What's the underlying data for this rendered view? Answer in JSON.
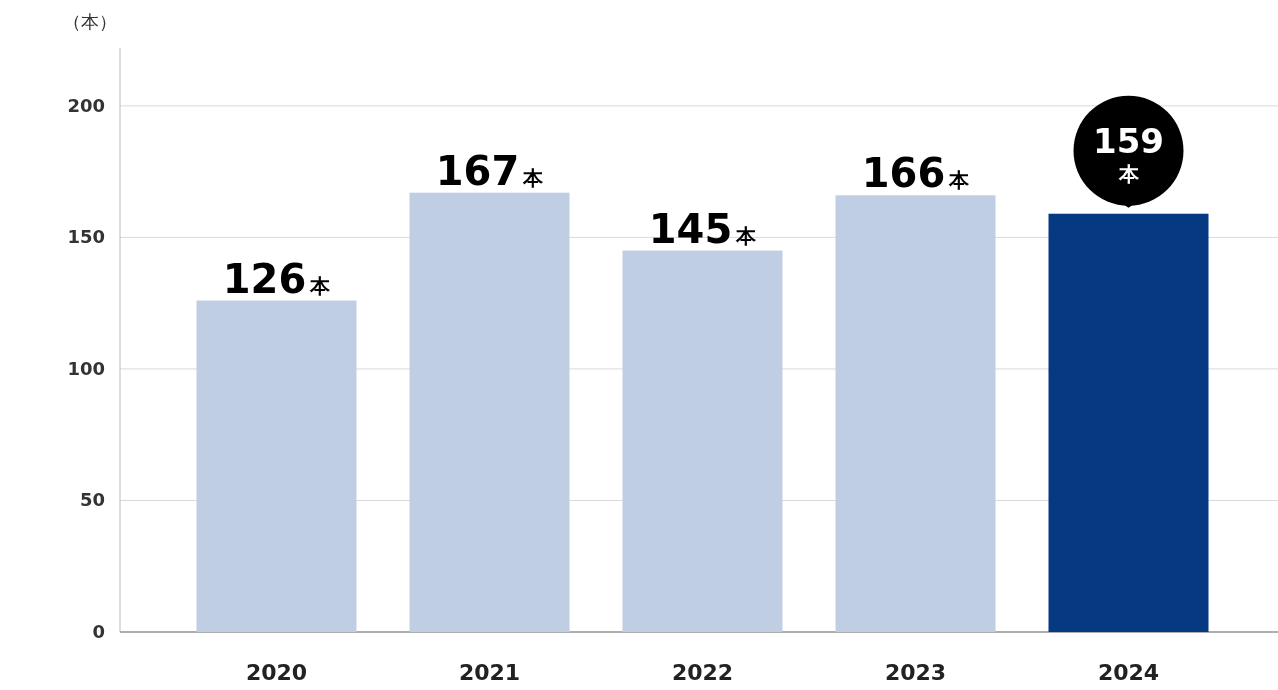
{
  "chart_data": {
    "type": "bar",
    "ylabel": "（本）",
    "categories": [
      "2020",
      "2021",
      "2022",
      "2023",
      "2024"
    ],
    "values": [
      126,
      167,
      145,
      166,
      159
    ],
    "colors": [
      "#bfcee3",
      "#bfcee3",
      "#bfcee3",
      "#bfcee3",
      "#053a82"
    ],
    "value_labels": [
      "126本",
      "167本",
      "145本",
      "166本",
      "159本"
    ],
    "ylim": [
      0,
      222
    ],
    "yticks": [
      0,
      50,
      100,
      150,
      200
    ],
    "grid": "y"
  }
}
